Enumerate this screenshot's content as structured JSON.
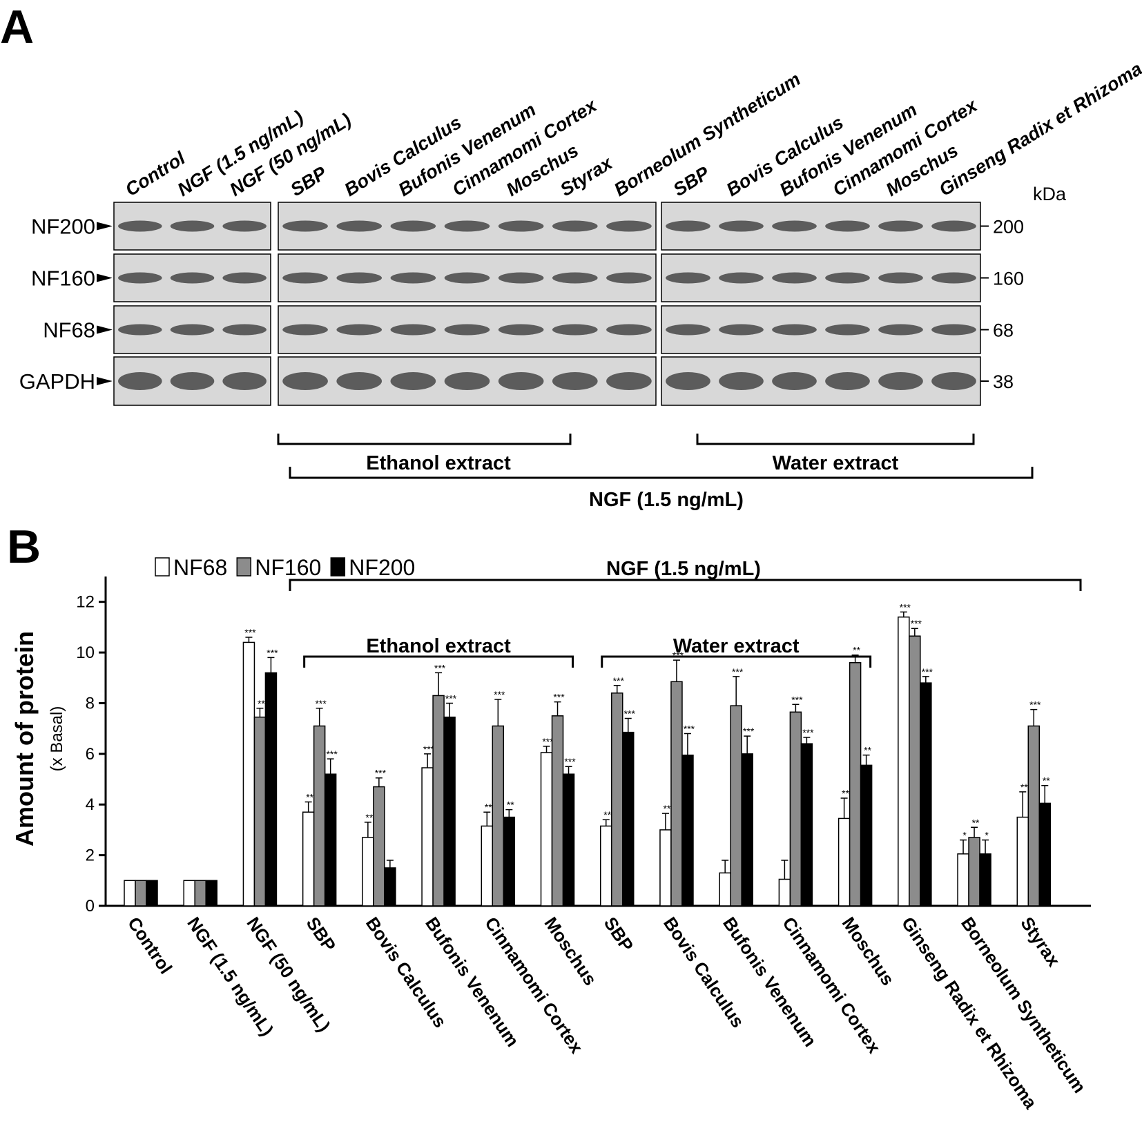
{
  "panel_a": {
    "label": "A",
    "lanes": [
      [
        "Control",
        "NGF (1.5 ng/mL)",
        "NGF (50 ng/mL)"
      ],
      [
        "SBP",
        "Bovis Calculus",
        "Bufonis Venenum",
        "Cinnamomi Cortex",
        "Moschus",
        "Styrax",
        "Borneolum Syntheticum"
      ],
      [
        "SBP",
        "Bovis Calculus",
        "Bufonis Venenum",
        "Cinnamomi Cortex",
        "Moschus",
        "Ginseng Radix et Rhizoma"
      ]
    ],
    "rows": [
      "NF200",
      "NF160",
      "NF68",
      "GAPDH"
    ],
    "kda_unit": "kDa",
    "kda": [
      "200",
      "160",
      "68",
      "38"
    ],
    "groups": [
      "Ethanol extract",
      "Water extract"
    ],
    "treatment": "NGF (1.5 ng/mL)"
  },
  "chart_data": {
    "type": "bar",
    "panel_label": "B",
    "ylabel": "Amount of protein",
    "ylabel_sub": "(x Basal)",
    "categories": [
      "Control",
      "NGF (1.5 ng/mL)",
      "NGF (50 ng/mL)",
      "SBP",
      "Bovis Calculus",
      "Bufonis Venenum",
      "Cinnamomi Cortex",
      "Moschus",
      "SBP",
      "Bovis Calculus",
      "Bufonis Venenum",
      "Cinnamomi Cortex",
      "Moschus",
      "Ginseng Radix et Rhizoma",
      "Borneolum Syntheticum",
      "Styrax"
    ],
    "series": [
      {
        "name": "NF68",
        "color": "#ffffff",
        "values": [
          1,
          1,
          10.4,
          3.7,
          2.7,
          5.45,
          3.15,
          6.05,
          3.15,
          3.0,
          1.3,
          1.05,
          3.45,
          11.4,
          2.05,
          3.5
        ],
        "errors": [
          0,
          0,
          0.2,
          0.4,
          0.6,
          0.55,
          0.55,
          0.25,
          0.25,
          0.65,
          0.5,
          0.75,
          0.8,
          0.2,
          0.55,
          1.0
        ],
        "annotations": [
          null,
          null,
          "***",
          "**",
          "**",
          "***",
          "**",
          "***",
          "**",
          "**",
          null,
          null,
          "**",
          "***",
          "*",
          "**"
        ]
      },
      {
        "name": "NF160",
        "color": "#8c8c8c",
        "values": [
          1,
          1,
          7.45,
          7.1,
          4.7,
          8.3,
          7.1,
          7.5,
          8.4,
          8.85,
          7.9,
          7.65,
          9.6,
          10.65,
          2.7,
          7.1
        ],
        "errors": [
          0,
          0,
          0.35,
          0.7,
          0.35,
          0.9,
          1.05,
          0.55,
          0.3,
          0.85,
          1.15,
          0.3,
          0.3,
          0.3,
          0.4,
          0.65
        ],
        "annotations": [
          null,
          null,
          "**",
          "***",
          "***",
          "***",
          "***",
          "***",
          "***",
          "***",
          "***",
          "***",
          "**",
          "***",
          "**",
          "***"
        ]
      },
      {
        "name": "NF200",
        "color": "#000000",
        "values": [
          1,
          1,
          9.2,
          5.2,
          1.5,
          7.45,
          3.5,
          5.2,
          6.85,
          5.95,
          6.0,
          6.4,
          5.55,
          8.8,
          2.05,
          4.05
        ],
        "errors": [
          0,
          0,
          0.6,
          0.6,
          0.3,
          0.55,
          0.3,
          0.3,
          0.55,
          0.85,
          0.7,
          0.25,
          0.4,
          0.25,
          0.55,
          0.7
        ],
        "annotations": [
          null,
          null,
          "***",
          "***",
          null,
          "***",
          "**",
          "***",
          "***",
          "***",
          "***",
          "***",
          "**",
          "***",
          "*",
          "**"
        ]
      }
    ],
    "ylim": [
      0,
      13
    ],
    "yticks": [
      0,
      2,
      4,
      6,
      8,
      10,
      12
    ],
    "legend": "top-left",
    "brackets": [
      "NGF (1.5 ng/mL)",
      "Ethanol extract",
      "Water extract"
    ]
  }
}
